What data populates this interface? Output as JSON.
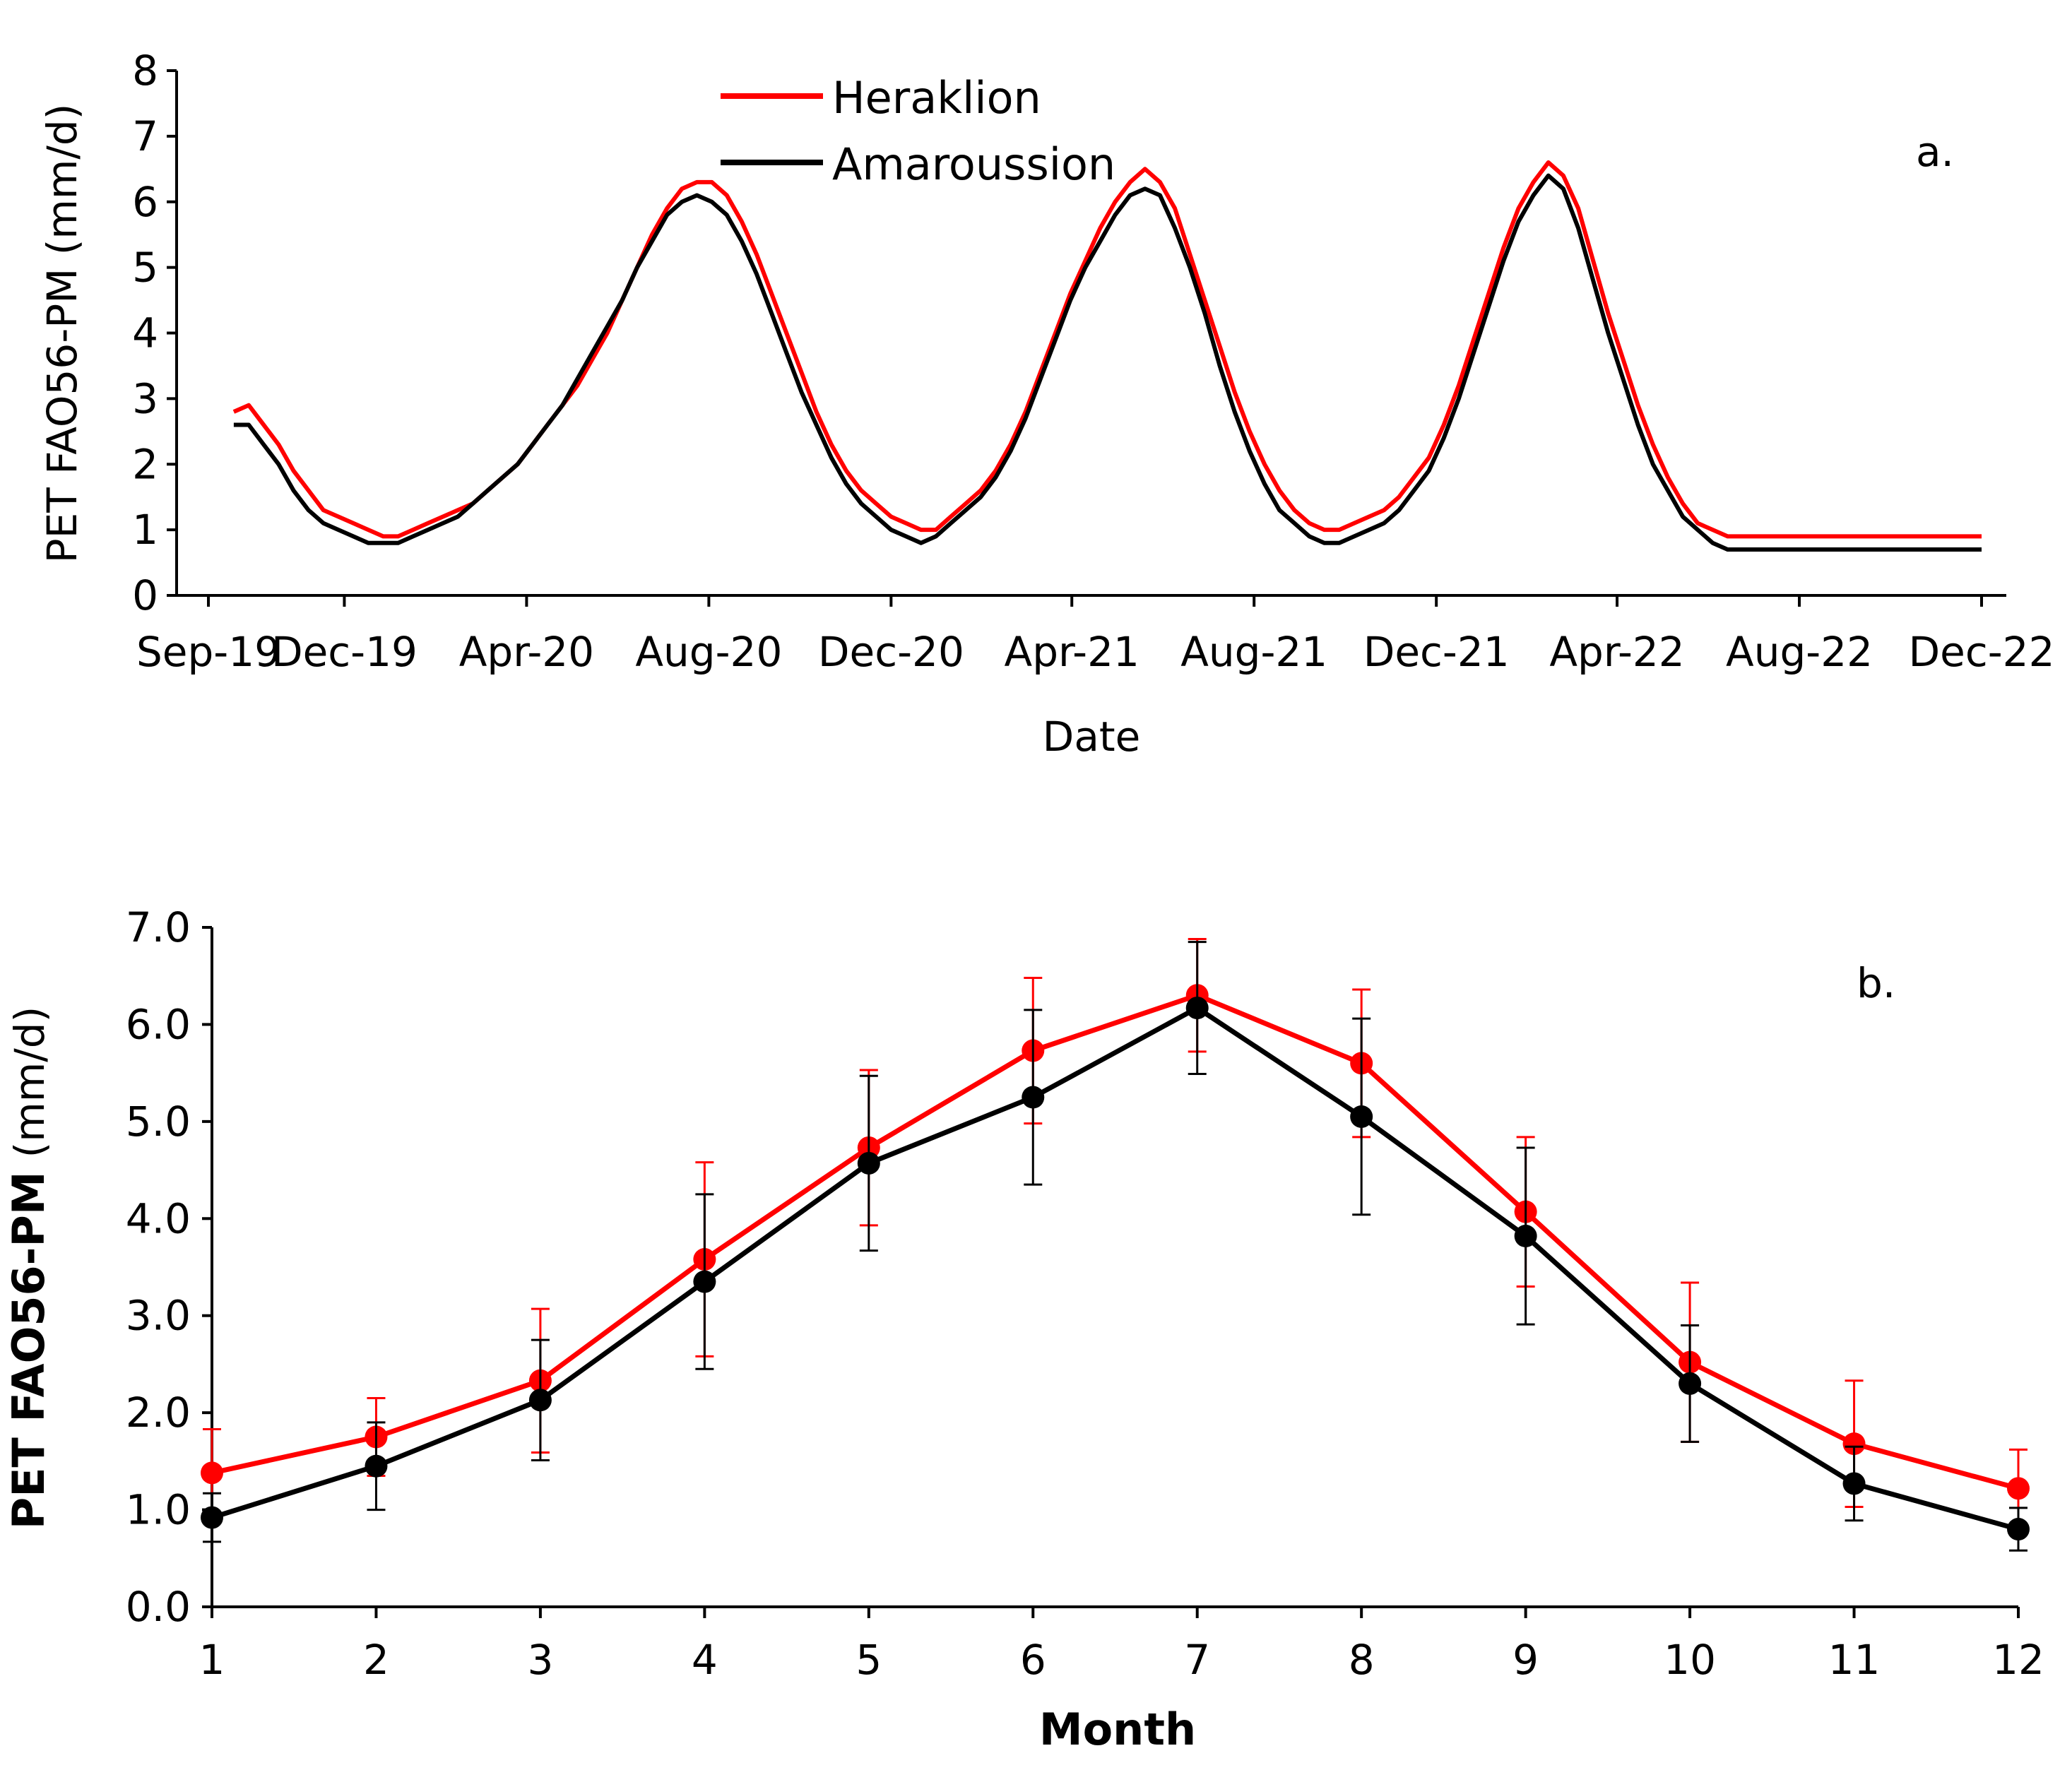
{
  "chart_data": [
    {
      "type": "line",
      "panel_label": "a.",
      "xlabel": "Date",
      "ylabel": "PET FAO56-PM (mm/d)",
      "ylim": [
        0,
        8
      ],
      "yticks": [
        "0",
        "1",
        "2",
        "3",
        "4",
        "5",
        "6",
        "7",
        "8"
      ],
      "xlim_days": [
        0,
        1200
      ],
      "xticks": [
        {
          "label": "Sep-19",
          "day": 0
        },
        {
          "label": "Dec-19",
          "day": 91
        },
        {
          "label": "Apr-20",
          "day": 213
        },
        {
          "label": "Aug-20",
          "day": 335
        },
        {
          "label": "Dec-20",
          "day": 457
        },
        {
          "label": "Apr-21",
          "day": 578
        },
        {
          "label": "Aug-21",
          "day": 700
        },
        {
          "label": "Dec-21",
          "day": 822
        },
        {
          "label": "Apr-22",
          "day": 943
        },
        {
          "label": "Aug-22",
          "day": 1065
        },
        {
          "label": "Dec-22",
          "day": 1187
        }
      ],
      "legend_position": "top-center",
      "series": [
        {
          "name": "Heraklion",
          "color": "#ff0000",
          "x_start_day": 17,
          "x_step_days": 10,
          "values": [
            2.8,
            2.9,
            2.6,
            2.3,
            1.9,
            1.6,
            1.3,
            1.2,
            1.1,
            1.0,
            0.9,
            0.9,
            1.0,
            1.1,
            1.2,
            1.3,
            1.4,
            1.6,
            1.8,
            2.0,
            2.3,
            2.6,
            2.9,
            3.2,
            3.6,
            4.0,
            4.5,
            5.0,
            5.5,
            5.9,
            6.2,
            6.3,
            6.3,
            6.1,
            5.7,
            5.2,
            4.6,
            4.0,
            3.4,
            2.8,
            2.3,
            1.9,
            1.6,
            1.4,
            1.2,
            1.1,
            1.0,
            1.0,
            1.2,
            1.4,
            1.6,
            1.9,
            2.3,
            2.8,
            3.4,
            4.0,
            4.6,
            5.1,
            5.6,
            6.0,
            6.3,
            6.5,
            6.3,
            5.9,
            5.2,
            4.5,
            3.8,
            3.1,
            2.5,
            2.0,
            1.6,
            1.3,
            1.1,
            1.0,
            1.0,
            1.1,
            1.2,
            1.3,
            1.5,
            1.8,
            2.1,
            2.6,
            3.2,
            3.9,
            4.6,
            5.3,
            5.9,
            6.3,
            6.6,
            6.4,
            5.9,
            5.1,
            4.3,
            3.6,
            2.9,
            2.3,
            1.8,
            1.4,
            1.1,
            1.0,
            0.9,
            0.9,
            0.9,
            0.9,
            0.9,
            0.9,
            0.9,
            0.9,
            0.9,
            0.9,
            0.9,
            0.9,
            0.9,
            0.9,
            0.9,
            0.9,
            0.9,
            0.9
          ]
        },
        {
          "name": "Amaroussion",
          "color": "#000000",
          "x_start_day": 17,
          "x_step_days": 10,
          "values": [
            2.6,
            2.6,
            2.3,
            2.0,
            1.6,
            1.3,
            1.1,
            1.0,
            0.9,
            0.8,
            0.8,
            0.8,
            0.9,
            1.0,
            1.1,
            1.2,
            1.4,
            1.6,
            1.8,
            2.0,
            2.3,
            2.6,
            2.9,
            3.3,
            3.7,
            4.1,
            4.5,
            5.0,
            5.4,
            5.8,
            6.0,
            6.1,
            6.0,
            5.8,
            5.4,
            4.9,
            4.3,
            3.7,
            3.1,
            2.6,
            2.1,
            1.7,
            1.4,
            1.2,
            1.0,
            0.9,
            0.8,
            0.9,
            1.1,
            1.3,
            1.5,
            1.8,
            2.2,
            2.7,
            3.3,
            3.9,
            4.5,
            5.0,
            5.4,
            5.8,
            6.1,
            6.2,
            6.1,
            5.6,
            5.0,
            4.3,
            3.5,
            2.8,
            2.2,
            1.7,
            1.3,
            1.1,
            0.9,
            0.8,
            0.8,
            0.9,
            1.0,
            1.1,
            1.3,
            1.6,
            1.9,
            2.4,
            3.0,
            3.7,
            4.4,
            5.1,
            5.7,
            6.1,
            6.4,
            6.2,
            5.6,
            4.8,
            4.0,
            3.3,
            2.6,
            2.0,
            1.6,
            1.2,
            1.0,
            0.8,
            0.7,
            0.7,
            0.7,
            0.7,
            0.7,
            0.7,
            0.7,
            0.7,
            0.7,
            0.7,
            0.7,
            0.7,
            0.7,
            0.7,
            0.7,
            0.7,
            0.7,
            0.7
          ]
        }
      ]
    },
    {
      "type": "line",
      "panel_label": "b.",
      "xlabel": "Month",
      "ylabel_bold": "PET FAO56-PM",
      "ylabel_unit": "(mm/d)",
      "ylim": [
        0,
        7
      ],
      "yticks": [
        "0.0",
        "1.0",
        "2.0",
        "3.0",
        "4.0",
        "5.0",
        "6.0",
        "7.0"
      ],
      "categories": [
        "1",
        "2",
        "3",
        "4",
        "5",
        "6",
        "7",
        "8",
        "9",
        "10",
        "11",
        "12"
      ],
      "series": [
        {
          "name": "Heraklion",
          "color": "#ff0000",
          "values": [
            1.38,
            1.75,
            2.33,
            3.58,
            4.73,
            5.73,
            6.3,
            5.6,
            4.07,
            2.52,
            1.68,
            1.22
          ],
          "error": [
            0.45,
            0.4,
            0.74,
            1.0,
            0.8,
            0.75,
            0.58,
            0.76,
            0.77,
            0.82,
            0.65,
            0.4
          ]
        },
        {
          "name": "Amaroussion",
          "color": "#000000",
          "values": [
            0.92,
            1.45,
            2.13,
            3.35,
            4.57,
            5.25,
            6.17,
            5.05,
            3.82,
            2.3,
            1.27,
            0.8
          ],
          "error": [
            0.25,
            0.45,
            0.62,
            0.9,
            0.9,
            0.9,
            0.68,
            1.01,
            0.91,
            0.6,
            0.38,
            0.22
          ]
        }
      ]
    }
  ]
}
